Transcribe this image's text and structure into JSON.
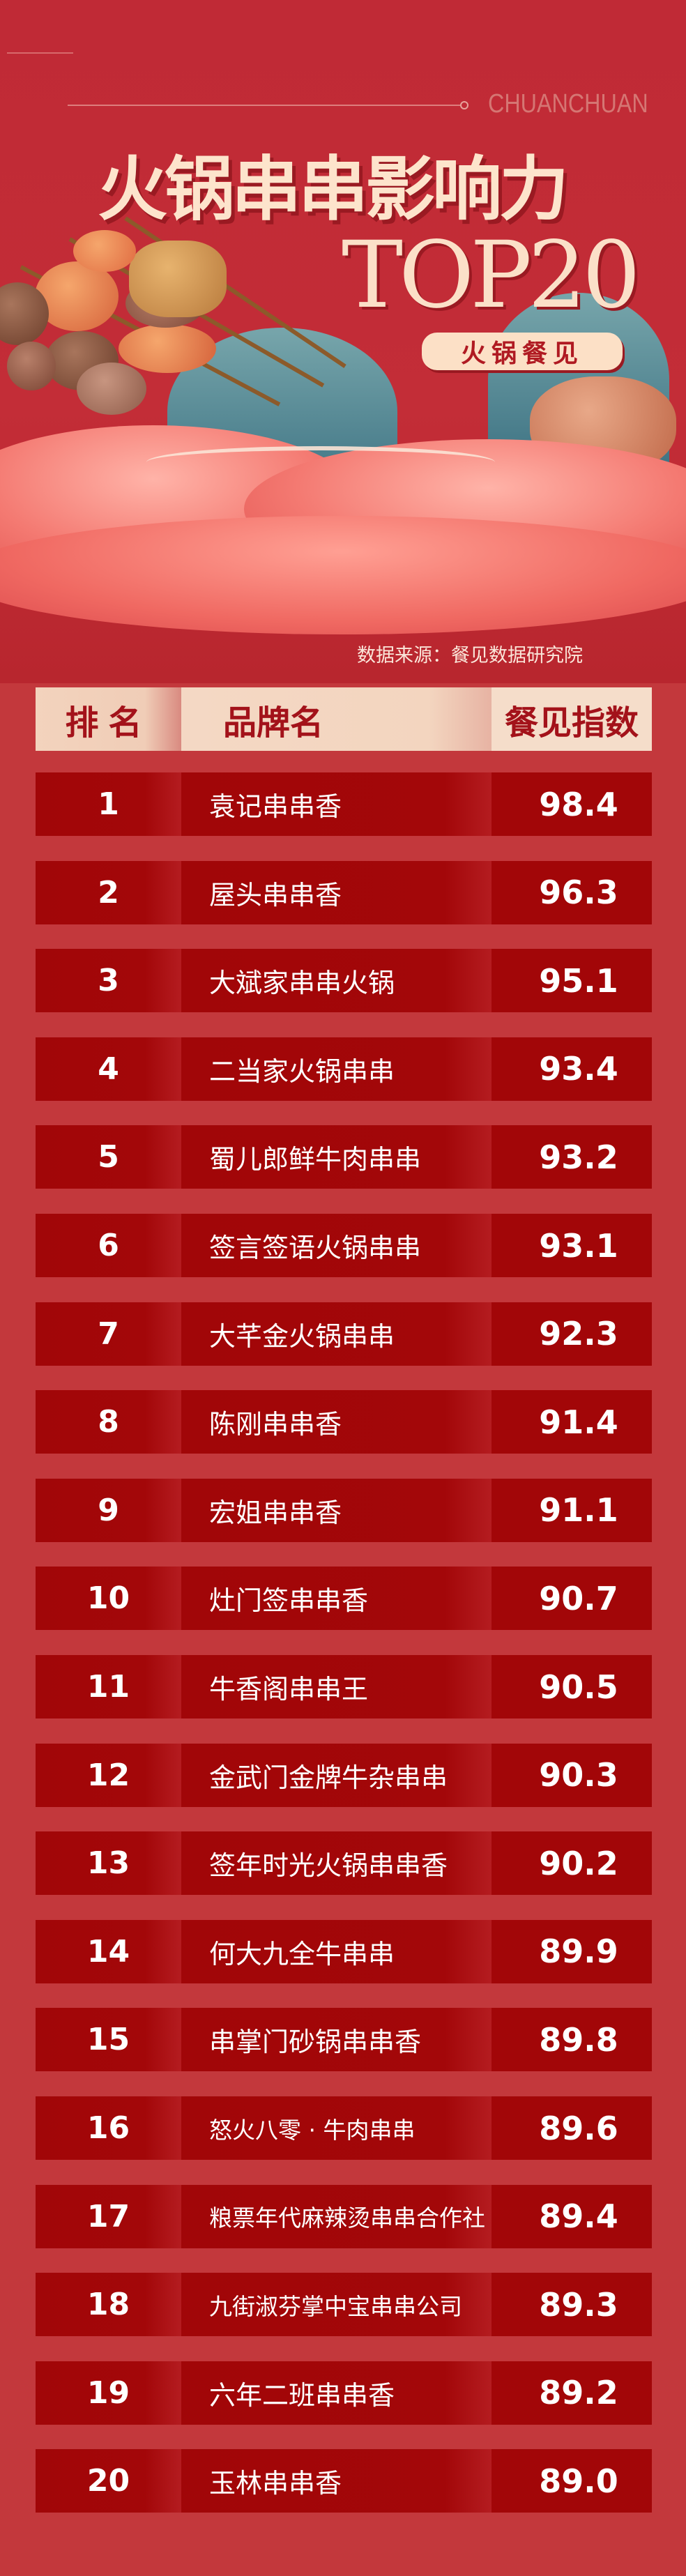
{
  "header": {
    "brand_en": "CHUANCHUAN",
    "title": "火锅串串影响力",
    "subtitle": "TOP20",
    "badge": "火锅餐见",
    "source": "数据来源：餐见数据研究院"
  },
  "table": {
    "columns": [
      "排名",
      "品牌名",
      "餐见指数"
    ],
    "rows": [
      {
        "rank": "1",
        "name": "袁记串串香",
        "score": "98.4"
      },
      {
        "rank": "2",
        "name": "屋头串串香",
        "score": "96.3"
      },
      {
        "rank": "3",
        "name": "大斌家串串火锅",
        "score": "95.1"
      },
      {
        "rank": "4",
        "name": "二当家火锅串串",
        "score": "93.4"
      },
      {
        "rank": "5",
        "name": "蜀儿郎鲜牛肉串串",
        "score": "93.2"
      },
      {
        "rank": "6",
        "name": "签言签语火锅串串",
        "score": "93.1"
      },
      {
        "rank": "7",
        "name": "大芊金火锅串串",
        "score": "92.3"
      },
      {
        "rank": "8",
        "name": "陈刚串串香",
        "score": "91.4"
      },
      {
        "rank": "9",
        "name": "宏姐串串香",
        "score": "91.1"
      },
      {
        "rank": "10",
        "name": "灶门签串串香",
        "score": "90.7"
      },
      {
        "rank": "11",
        "name": "牛香阁串串王",
        "score": "90.5"
      },
      {
        "rank": "12",
        "name": "金武门金牌牛杂串串",
        "score": "90.3"
      },
      {
        "rank": "13",
        "name": "签年时光火锅串串香",
        "score": "90.2"
      },
      {
        "rank": "14",
        "name": "何大九全牛串串",
        "score": "89.9"
      },
      {
        "rank": "15",
        "name": "串掌门砂锅串串香",
        "score": "89.8"
      },
      {
        "rank": "16",
        "name": "怒火八零 · 牛肉串串",
        "score": "89.6"
      },
      {
        "rank": "17",
        "name": "粮票年代麻辣烫串串合作社",
        "score": "89.4"
      },
      {
        "rank": "18",
        "name": "九街淑芬掌中宝串串公司",
        "score": "89.3"
      },
      {
        "rank": "19",
        "name": "六年二班串串香",
        "score": "89.2"
      },
      {
        "rank": "20",
        "name": "玉林串串香",
        "score": "89.0"
      }
    ]
  },
  "colors": {
    "background": "#c3383c",
    "row": "#a20608",
    "header_cell": "#f3d5bf",
    "header_text": "#a3121a",
    "title": "#fde4cc"
  }
}
